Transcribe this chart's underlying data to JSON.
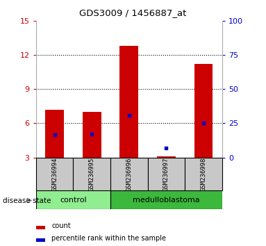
{
  "title": "GDS3009 / 1456887_at",
  "samples": [
    "GSM236994",
    "GSM236995",
    "GSM236996",
    "GSM236997",
    "GSM236998"
  ],
  "red_bar_values": [
    7.2,
    7.0,
    12.8,
    3.1,
    11.2
  ],
  "blue_marker_values": [
    5.0,
    5.05,
    6.7,
    3.85,
    6.0
  ],
  "y_min": 3,
  "y_max": 15,
  "y_ticks_left": [
    3,
    6,
    9,
    12,
    15
  ],
  "y_ticks_right": [
    0,
    25,
    50,
    75,
    100
  ],
  "control_color": "#90EE90",
  "medulloblastoma_color": "#3CB83C",
  "disease_state_label": "disease state",
  "legend_count_label": "count",
  "legend_percentile_label": "percentile rank within the sample",
  "bar_color": "#CC0000",
  "marker_color": "#0000CC",
  "tick_bg_color": "#C8C8C8"
}
